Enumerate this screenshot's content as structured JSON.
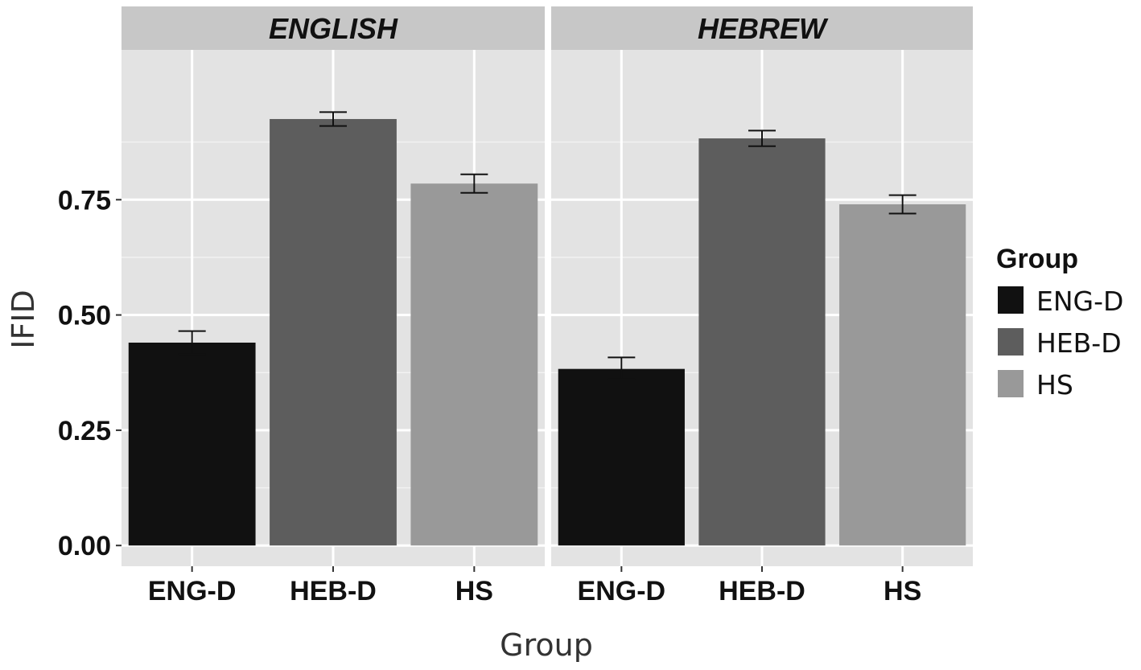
{
  "chart_data": {
    "type": "bar",
    "facets": [
      "ENGLISH",
      "HEBREW"
    ],
    "categories": [
      "ENG-D",
      "HEB-D",
      "HS"
    ],
    "series": [
      {
        "facet": "ENGLISH",
        "values": [
          0.44,
          0.925,
          0.785
        ],
        "error_low": [
          0.415,
          0.91,
          0.765
        ],
        "error_high": [
          0.465,
          0.94,
          0.805
        ]
      },
      {
        "facet": "HEBREW",
        "values": [
          0.383,
          0.883,
          0.74
        ],
        "error_low": [
          0.36,
          0.866,
          0.72
        ],
        "error_high": [
          0.408,
          0.9,
          0.76
        ]
      }
    ],
    "colors": {
      "ENG-D": "#111111",
      "HEB-D": "#5d5d5d",
      "HS": "#999999"
    },
    "xlabel": "Group",
    "ylabel": "IFID",
    "ylim": [
      -0.045,
      1.075
    ],
    "yticks": [
      0.0,
      0.25,
      0.5,
      0.75
    ],
    "ytick_labels": [
      "0.00",
      "0.25",
      "0.50",
      "0.75"
    ],
    "grid": true,
    "panel_background": "#e3e3e3",
    "strip_background": "#c7c7c7",
    "legend": {
      "title": "Group",
      "labels": [
        "ENG-D",
        "HEB-D",
        "HS"
      ],
      "position": "right"
    }
  }
}
